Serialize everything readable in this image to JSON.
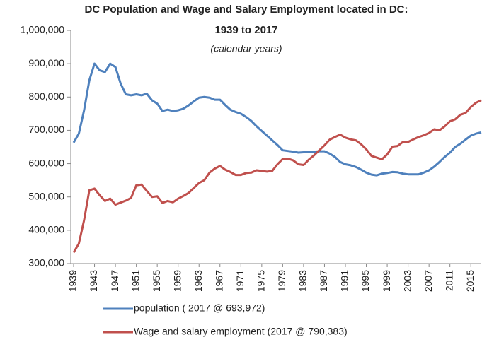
{
  "chart_data": {
    "type": "line",
    "title": "DC Population and Wage and Salary Employment located in DC:",
    "subtitle": "1939 to 2017",
    "note": "(calendar  years)",
    "x": [
      1939,
      1940,
      1941,
      1942,
      1943,
      1944,
      1945,
      1946,
      1947,
      1948,
      1949,
      1950,
      1951,
      1952,
      1953,
      1954,
      1955,
      1956,
      1957,
      1958,
      1959,
      1960,
      1961,
      1962,
      1963,
      1964,
      1965,
      1966,
      1967,
      1968,
      1969,
      1970,
      1971,
      1972,
      1973,
      1974,
      1975,
      1976,
      1977,
      1978,
      1979,
      1980,
      1981,
      1982,
      1983,
      1984,
      1985,
      1986,
      1987,
      1988,
      1989,
      1990,
      1991,
      1992,
      1993,
      1994,
      1995,
      1996,
      1997,
      1998,
      1999,
      2000,
      2001,
      2002,
      2003,
      2004,
      2005,
      2006,
      2007,
      2008,
      2009,
      2010,
      2011,
      2012,
      2013,
      2014,
      2015,
      2016,
      2017
    ],
    "xlim": [
      1939,
      2017
    ],
    "xticks": [
      1939,
      1943,
      1947,
      1951,
      1955,
      1959,
      1963,
      1967,
      1971,
      1975,
      1979,
      1983,
      1987,
      1991,
      1995,
      1999,
      2003,
      2007,
      2011,
      2015
    ],
    "ylim": [
      300000,
      1000000
    ],
    "yticks": [
      {
        "value": 300000,
        "label": "300,000"
      },
      {
        "value": 400000,
        "label": "400,000"
      },
      {
        "value": 500000,
        "label": "500,000"
      },
      {
        "value": 600000,
        "label": "600,000"
      },
      {
        "value": 700000,
        "label": "700,000"
      },
      {
        "value": 800000,
        "label": "800,000"
      },
      {
        "value": 900000,
        "label": "900,000"
      },
      {
        "value": 1000000,
        "label": "1,000,000"
      }
    ],
    "grid": false,
    "legend": "bottom",
    "series": [
      {
        "name": "population ( 2017 @ 693,972)",
        "color": "#4f81bd",
        "values": [
          663000,
          690000,
          760000,
          850000,
          900000,
          880000,
          875000,
          900000,
          890000,
          840000,
          808000,
          805000,
          808000,
          805000,
          810000,
          790000,
          780000,
          758000,
          762000,
          758000,
          760000,
          765000,
          775000,
          787000,
          798000,
          800000,
          798000,
          792000,
          792000,
          776000,
          762000,
          755000,
          750000,
          740000,
          728000,
          712000,
          698000,
          684000,
          670000,
          656000,
          640000,
          638000,
          636000,
          633000,
          634000,
          634000,
          636000,
          637000,
          637000,
          630000,
          620000,
          605000,
          598000,
          595000,
          590000,
          582000,
          573000,
          567000,
          565000,
          570000,
          572000,
          575000,
          574000,
          570000,
          568000,
          568000,
          568000,
          573000,
          580000,
          591000,
          605000,
          620000,
          633000,
          650000,
          660000,
          672000,
          684000,
          690000,
          693972
        ]
      },
      {
        "name": "Wage and salary employment (2017 @ 790,383)",
        "color": "#c0504d",
        "values": [
          333000,
          360000,
          430000,
          520000,
          525000,
          505000,
          488000,
          495000,
          477000,
          483000,
          489000,
          497000,
          535000,
          537000,
          518000,
          500000,
          502000,
          482000,
          488000,
          484000,
          495000,
          503000,
          512000,
          527000,
          542000,
          550000,
          573000,
          585000,
          593000,
          582000,
          575000,
          566000,
          566000,
          572000,
          573000,
          580000,
          578000,
          576000,
          578000,
          598000,
          614000,
          615000,
          610000,
          598000,
          596000,
          612000,
          625000,
          640000,
          655000,
          672000,
          680000,
          687000,
          678000,
          673000,
          670000,
          658000,
          643000,
          623000,
          618000,
          613000,
          628000,
          651000,
          653000,
          665000,
          665000,
          673000,
          680000,
          685000,
          692000,
          703000,
          700000,
          712000,
          727000,
          733000,
          747000,
          752000,
          770000,
          783000,
          790383
        ]
      }
    ]
  }
}
